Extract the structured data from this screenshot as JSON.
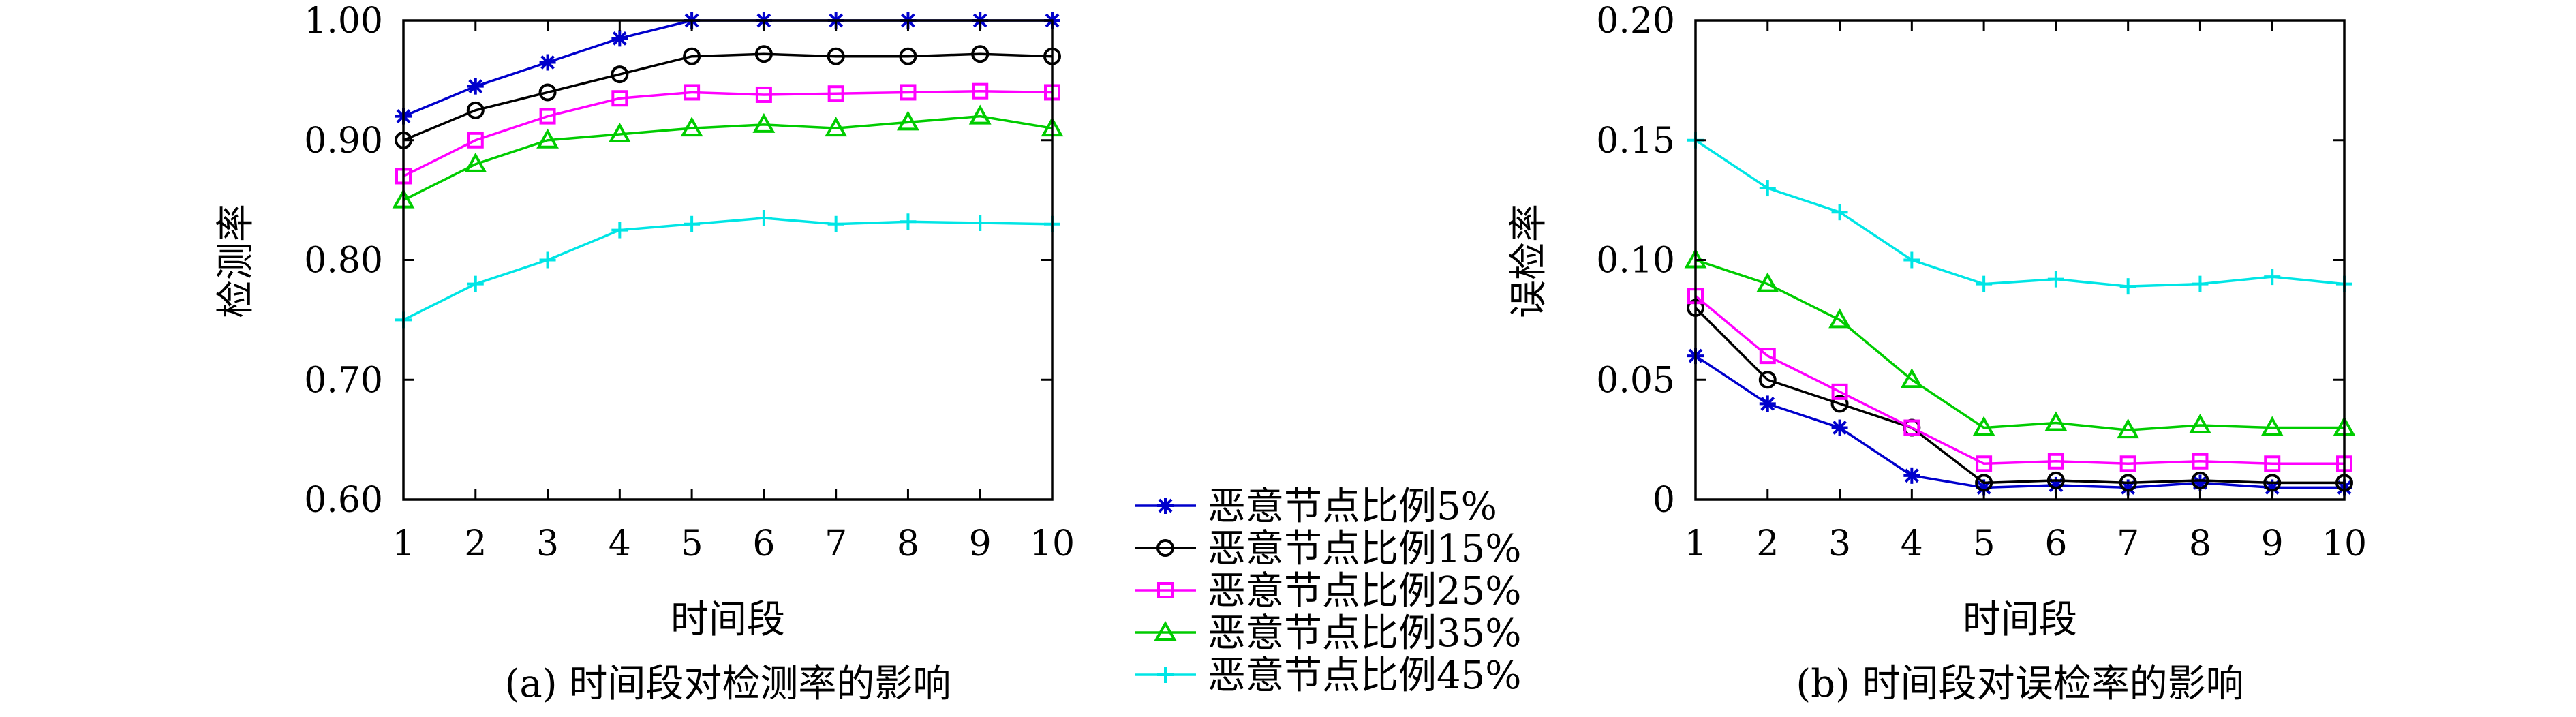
{
  "chart_data": [
    {
      "type": "line",
      "caption": "(a) 时间段对检测率的影响",
      "xlabel": "时间段",
      "ylabel": "检测率",
      "xlim": [
        1,
        10
      ],
      "ylim": [
        0.6,
        1.0
      ],
      "x": [
        1,
        2,
        3,
        4,
        5,
        6,
        7,
        8,
        9,
        10
      ],
      "x_tick_labels": [
        "1",
        "2",
        "3",
        "4",
        "5",
        "6",
        "7",
        "8",
        "9",
        "10"
      ],
      "y_ticks": [
        0.6,
        0.7,
        0.8,
        0.9,
        1.0
      ],
      "y_tick_labels": [
        "0.60",
        "0.70",
        "0.80",
        "0.90",
        "1.00"
      ],
      "series": [
        {
          "name": "恶意节点比例5%",
          "color": "#0000cc",
          "marker": "asterisk",
          "values": [
            0.92,
            0.945,
            0.965,
            0.985,
            1.0,
            1.0,
            1.0,
            1.0,
            1.0,
            1.0
          ]
        },
        {
          "name": "恶意节点比例15%",
          "color": "#000000",
          "marker": "circle",
          "values": [
            0.9,
            0.925,
            0.94,
            0.955,
            0.97,
            0.972,
            0.97,
            0.97,
            0.972,
            0.97
          ]
        },
        {
          "name": "恶意节点比例25%",
          "color": "#ff00ff",
          "marker": "square",
          "values": [
            0.87,
            0.9,
            0.92,
            0.935,
            0.94,
            0.938,
            0.939,
            0.94,
            0.941,
            0.94
          ]
        },
        {
          "name": "恶意节点比例35%",
          "color": "#00cc00",
          "marker": "triangle",
          "values": [
            0.85,
            0.88,
            0.9,
            0.905,
            0.91,
            0.913,
            0.91,
            0.915,
            0.92,
            0.91
          ]
        },
        {
          "name": "恶意节点比例45%",
          "color": "#00e5e5",
          "marker": "plus",
          "values": [
            0.75,
            0.78,
            0.8,
            0.825,
            0.83,
            0.835,
            0.83,
            0.832,
            0.831,
            0.83
          ]
        }
      ]
    },
    {
      "type": "line",
      "caption": "(b) 时间段对误检率的影响",
      "xlabel": "时间段",
      "ylabel": "误检率",
      "xlim": [
        1,
        10
      ],
      "ylim": [
        0,
        0.2
      ],
      "x": [
        1,
        2,
        3,
        4,
        5,
        6,
        7,
        8,
        9,
        10
      ],
      "x_tick_labels": [
        "1",
        "2",
        "3",
        "4",
        "5",
        "6",
        "7",
        "8",
        "9",
        "10"
      ],
      "y_ticks": [
        0,
        0.05,
        0.1,
        0.15,
        0.2
      ],
      "y_tick_labels": [
        "0",
        "0.05",
        "0.10",
        "0.15",
        "0.20"
      ],
      "series": [
        {
          "name": "恶意节点比例5%",
          "color": "#0000cc",
          "marker": "asterisk",
          "values": [
            0.06,
            0.04,
            0.03,
            0.01,
            0.005,
            0.006,
            0.005,
            0.007,
            0.005,
            0.005
          ]
        },
        {
          "name": "恶意节点比例15%",
          "color": "#000000",
          "marker": "circle",
          "values": [
            0.08,
            0.05,
            0.04,
            0.03,
            0.007,
            0.008,
            0.007,
            0.008,
            0.007,
            0.007
          ]
        },
        {
          "name": "恶意节点比例25%",
          "color": "#ff00ff",
          "marker": "square",
          "values": [
            0.085,
            0.06,
            0.045,
            0.03,
            0.015,
            0.016,
            0.015,
            0.016,
            0.015,
            0.015
          ]
        },
        {
          "name": "恶意节点比例35%",
          "color": "#00cc00",
          "marker": "triangle",
          "values": [
            0.1,
            0.09,
            0.075,
            0.05,
            0.03,
            0.032,
            0.029,
            0.031,
            0.03,
            0.03
          ]
        },
        {
          "name": "恶意节点比例45%",
          "color": "#00e5e5",
          "marker": "plus",
          "values": [
            0.15,
            0.13,
            0.12,
            0.1,
            0.09,
            0.092,
            0.089,
            0.09,
            0.093,
            0.09
          ]
        }
      ]
    }
  ],
  "legend": {
    "placement": "bottom-center, between panels",
    "entries": [
      "恶意节点比例5%",
      "恶意节点比例15%",
      "恶意节点比例25%",
      "恶意节点比例35%",
      "恶意节点比例45%"
    ]
  }
}
